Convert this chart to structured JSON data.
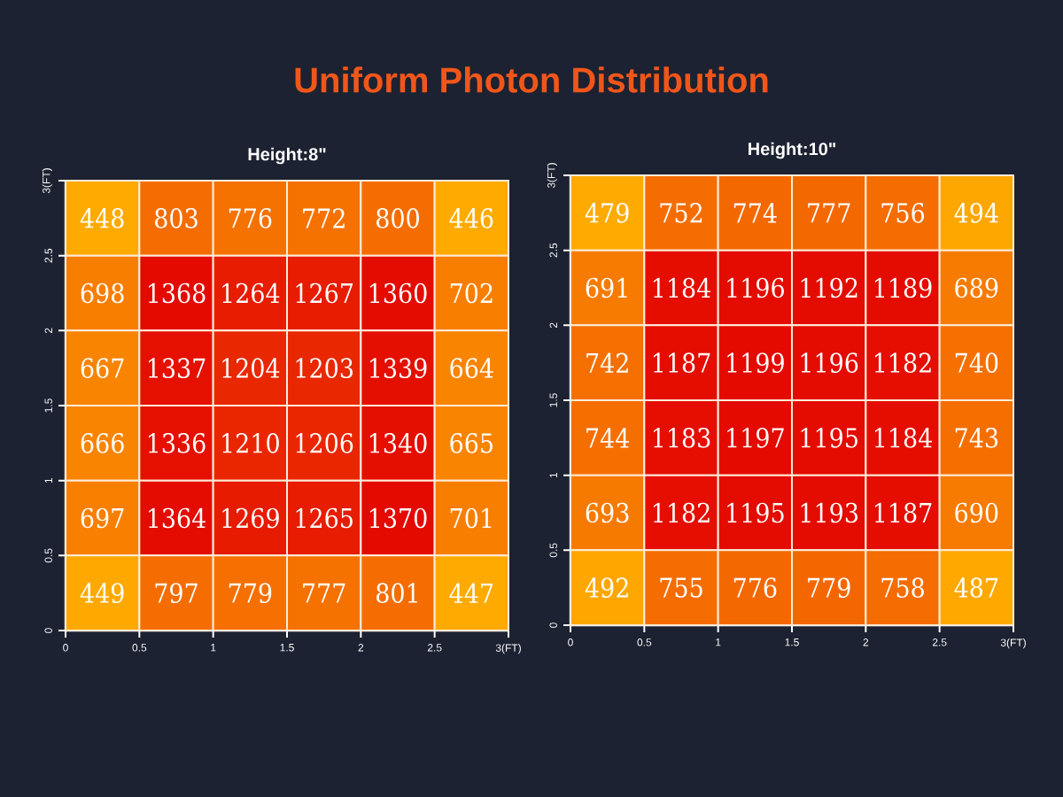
{
  "chart_data": [
    {
      "type": "heatmap",
      "title": "Uniform Photon Distribution",
      "subtitle": "Height:8\"",
      "data_labels": true,
      "xlim": [
        0,
        3
      ],
      "ylim": [
        0,
        3
      ],
      "xticks": [
        0,
        0.5,
        1,
        1.5,
        2,
        2.5,
        {
          "value": 3,
          "label": "3(FT)"
        }
      ],
      "yticks": [
        0,
        0.5,
        1,
        1.5,
        2,
        2.5,
        {
          "value": 3,
          "label": "3(FT)"
        }
      ],
      "cells": [
        [
          448,
          803,
          776,
          772,
          800,
          446
        ],
        [
          698,
          1368,
          1264,
          1267,
          1360,
          702
        ],
        [
          667,
          1337,
          1204,
          1203,
          1339,
          664
        ],
        [
          666,
          1336,
          1210,
          1206,
          1340,
          665
        ],
        [
          697,
          1364,
          1269,
          1265,
          1370,
          701
        ],
        [
          449,
          797,
          779,
          777,
          801,
          447
        ]
      ]
    },
    {
      "type": "heatmap",
      "title": "Height:10\"",
      "data_labels": true,
      "xlim": [
        0,
        3
      ],
      "ylim": [
        0,
        3
      ],
      "xticks": [
        0,
        0.5,
        1,
        1.5,
        2,
        2.5,
        {
          "value": 3,
          "label": "3(FT)"
        }
      ],
      "yticks": [
        0,
        0.5,
        1,
        1.5,
        2,
        2.5,
        {
          "value": 3,
          "label": "3(FT)"
        }
      ],
      "cells": [
        [
          479,
          752,
          774,
          777,
          756,
          494
        ],
        [
          691,
          1184,
          1196,
          1192,
          1189,
          689
        ],
        [
          742,
          1187,
          1199,
          1196,
          1182,
          740
        ],
        [
          744,
          1183,
          1197,
          1195,
          1184,
          743
        ],
        [
          693,
          1182,
          1195,
          1193,
          1187,
          690
        ],
        [
          492,
          755,
          776,
          779,
          758,
          487
        ]
      ]
    }
  ]
}
